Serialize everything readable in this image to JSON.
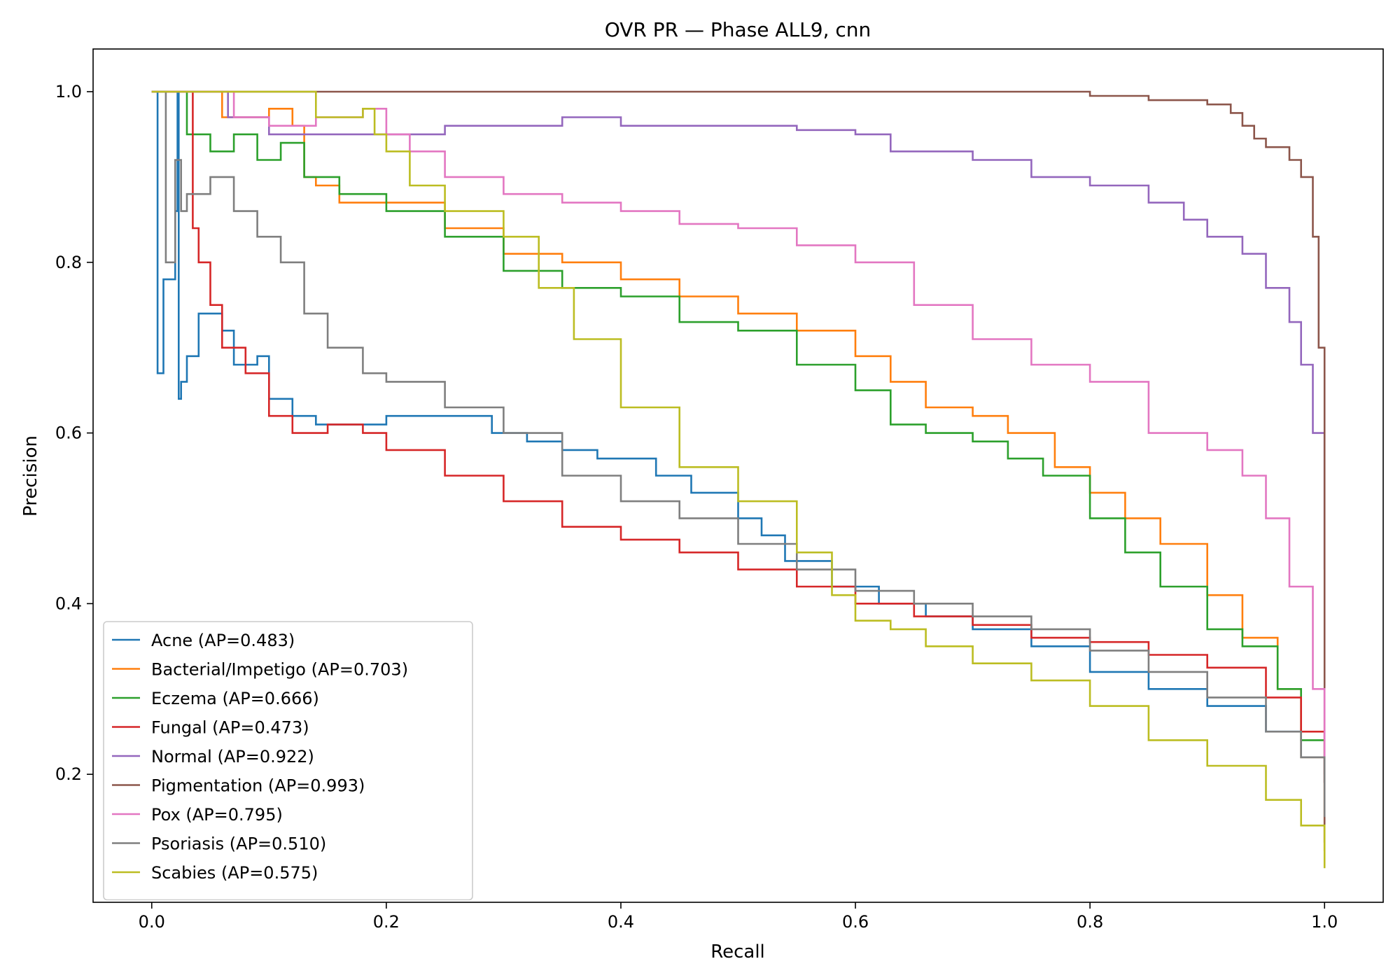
{
  "chart_data": {
    "type": "line",
    "title": "OVR PR — Phase ALL9, cnn",
    "xlabel": "Recall",
    "ylabel": "Precision",
    "xlim": [
      -0.05,
      1.05
    ],
    "ylim": [
      0.05,
      1.05
    ],
    "xticks": [
      0.0,
      0.2,
      0.4,
      0.6,
      0.8,
      1.0
    ],
    "xtick_labels": [
      "0.0",
      "0.2",
      "0.4",
      "0.6",
      "0.8",
      "1.0"
    ],
    "yticks": [
      0.2,
      0.4,
      0.6,
      0.8,
      1.0
    ],
    "ytick_labels": [
      "0.2",
      "0.4",
      "0.6",
      "0.8",
      "1.0"
    ],
    "grid": false,
    "legend_position": "lower-left",
    "series": [
      {
        "name": "Acne (AP=0.483)",
        "color": "#1f77b4",
        "x": [
          0.0,
          0.004,
          0.005,
          0.01,
          0.02,
          0.022,
          0.023,
          0.025,
          0.03,
          0.04,
          0.05,
          0.06,
          0.07,
          0.09,
          0.1,
          0.12,
          0.14,
          0.17,
          0.2,
          0.25,
          0.29,
          0.32,
          0.35,
          0.38,
          0.4,
          0.43,
          0.46,
          0.5,
          0.52,
          0.54,
          0.58,
          0.62,
          0.66,
          0.7,
          0.75,
          0.8,
          0.85,
          0.9,
          0.95,
          0.98,
          1.0
        ],
        "y": [
          1.0,
          1.0,
          0.67,
          0.78,
          0.86,
          1.0,
          0.64,
          0.66,
          0.69,
          0.74,
          0.74,
          0.72,
          0.68,
          0.69,
          0.64,
          0.62,
          0.61,
          0.61,
          0.62,
          0.62,
          0.6,
          0.59,
          0.58,
          0.57,
          0.57,
          0.55,
          0.53,
          0.5,
          0.48,
          0.45,
          0.42,
          0.4,
          0.385,
          0.37,
          0.35,
          0.32,
          0.3,
          0.28,
          0.25,
          0.22,
          0.2
        ]
      },
      {
        "name": "Bacterial/Impetigo (AP=0.703)",
        "color": "#ff7f0e",
        "x": [
          0.0,
          0.06,
          0.08,
          0.1,
          0.12,
          0.13,
          0.14,
          0.16,
          0.2,
          0.25,
          0.3,
          0.35,
          0.4,
          0.45,
          0.5,
          0.55,
          0.6,
          0.63,
          0.66,
          0.7,
          0.73,
          0.77,
          0.8,
          0.83,
          0.86,
          0.9,
          0.93,
          0.96,
          0.98,
          1.0
        ],
        "y": [
          1.0,
          0.97,
          0.97,
          0.98,
          0.96,
          0.9,
          0.89,
          0.87,
          0.87,
          0.84,
          0.81,
          0.8,
          0.78,
          0.76,
          0.74,
          0.72,
          0.69,
          0.66,
          0.63,
          0.62,
          0.6,
          0.56,
          0.53,
          0.5,
          0.47,
          0.41,
          0.36,
          0.3,
          0.22,
          0.11
        ]
      },
      {
        "name": "Eczema (AP=0.666)",
        "color": "#2ca02c",
        "x": [
          0.0,
          0.025,
          0.03,
          0.05,
          0.07,
          0.09,
          0.11,
          0.13,
          0.16,
          0.2,
          0.25,
          0.3,
          0.35,
          0.4,
          0.45,
          0.5,
          0.55,
          0.6,
          0.63,
          0.66,
          0.7,
          0.73,
          0.76,
          0.8,
          0.83,
          0.86,
          0.9,
          0.93,
          0.96,
          0.98,
          1.0
        ],
        "y": [
          1.0,
          1.0,
          0.95,
          0.93,
          0.95,
          0.92,
          0.94,
          0.9,
          0.88,
          0.86,
          0.83,
          0.79,
          0.77,
          0.76,
          0.73,
          0.72,
          0.68,
          0.65,
          0.61,
          0.6,
          0.59,
          0.57,
          0.55,
          0.5,
          0.46,
          0.42,
          0.37,
          0.35,
          0.3,
          0.24,
          0.19
        ]
      },
      {
        "name": "Fungal (AP=0.473)",
        "color": "#d62728",
        "x": [
          0.0,
          0.03,
          0.035,
          0.04,
          0.05,
          0.06,
          0.08,
          0.1,
          0.12,
          0.15,
          0.18,
          0.2,
          0.25,
          0.3,
          0.35,
          0.4,
          0.45,
          0.5,
          0.55,
          0.6,
          0.65,
          0.7,
          0.75,
          0.8,
          0.85,
          0.9,
          0.95,
          0.98,
          1.0
        ],
        "y": [
          1.0,
          1.0,
          0.84,
          0.8,
          0.75,
          0.7,
          0.67,
          0.62,
          0.6,
          0.61,
          0.6,
          0.58,
          0.55,
          0.52,
          0.49,
          0.475,
          0.46,
          0.44,
          0.42,
          0.4,
          0.385,
          0.375,
          0.36,
          0.355,
          0.34,
          0.325,
          0.29,
          0.25,
          0.19
        ]
      },
      {
        "name": "Normal (AP=0.922)",
        "color": "#9467bd",
        "x": [
          0.0,
          0.06,
          0.065,
          0.1,
          0.15,
          0.2,
          0.25,
          0.3,
          0.35,
          0.4,
          0.45,
          0.5,
          0.55,
          0.6,
          0.63,
          0.66,
          0.7,
          0.75,
          0.8,
          0.85,
          0.88,
          0.9,
          0.93,
          0.95,
          0.97,
          0.98,
          0.99,
          1.0
        ],
        "y": [
          1.0,
          1.0,
          0.97,
          0.95,
          0.95,
          0.95,
          0.96,
          0.96,
          0.97,
          0.96,
          0.96,
          0.96,
          0.955,
          0.95,
          0.93,
          0.93,
          0.92,
          0.9,
          0.89,
          0.87,
          0.85,
          0.83,
          0.81,
          0.77,
          0.73,
          0.68,
          0.6,
          0.44
        ]
      },
      {
        "name": "Pigmentation (AP=0.993)",
        "color": "#8c564b",
        "x": [
          0.0,
          0.7,
          0.74,
          0.8,
          0.85,
          0.9,
          0.92,
          0.93,
          0.94,
          0.95,
          0.97,
          0.98,
          0.99,
          0.995,
          1.0,
          1.0
        ],
        "y": [
          1.0,
          1.0,
          1.0,
          0.995,
          0.99,
          0.985,
          0.975,
          0.96,
          0.945,
          0.935,
          0.92,
          0.9,
          0.83,
          0.7,
          0.44,
          0.12
        ]
      },
      {
        "name": "Pox (AP=0.795)",
        "color": "#e377c2",
        "x": [
          0.0,
          0.06,
          0.07,
          0.1,
          0.14,
          0.18,
          0.2,
          0.22,
          0.25,
          0.3,
          0.35,
          0.4,
          0.45,
          0.5,
          0.55,
          0.6,
          0.65,
          0.7,
          0.75,
          0.8,
          0.85,
          0.9,
          0.93,
          0.95,
          0.97,
          0.99,
          1.0
        ],
        "y": [
          1.0,
          1.0,
          0.97,
          0.96,
          0.97,
          0.98,
          0.95,
          0.93,
          0.9,
          0.88,
          0.87,
          0.86,
          0.845,
          0.84,
          0.82,
          0.8,
          0.75,
          0.71,
          0.68,
          0.66,
          0.6,
          0.58,
          0.55,
          0.5,
          0.42,
          0.3,
          0.19
        ]
      },
      {
        "name": "Psoriasis (AP=0.510)",
        "color": "#7f7f7f",
        "x": [
          0.0,
          0.01,
          0.012,
          0.02,
          0.025,
          0.03,
          0.05,
          0.07,
          0.09,
          0.11,
          0.13,
          0.15,
          0.18,
          0.2,
          0.25,
          0.3,
          0.35,
          0.4,
          0.45,
          0.5,
          0.55,
          0.6,
          0.65,
          0.7,
          0.75,
          0.8,
          0.85,
          0.9,
          0.95,
          0.98,
          1.0
        ],
        "y": [
          1.0,
          1.0,
          0.8,
          0.92,
          0.86,
          0.88,
          0.9,
          0.86,
          0.83,
          0.8,
          0.74,
          0.7,
          0.67,
          0.66,
          0.63,
          0.6,
          0.55,
          0.52,
          0.5,
          0.47,
          0.44,
          0.415,
          0.4,
          0.385,
          0.37,
          0.345,
          0.32,
          0.29,
          0.25,
          0.22,
          0.15
        ]
      },
      {
        "name": "Scabies (AP=0.575)",
        "color": "#bcbd22",
        "x": [
          0.0,
          0.135,
          0.14,
          0.18,
          0.19,
          0.2,
          0.22,
          0.25,
          0.3,
          0.33,
          0.36,
          0.4,
          0.45,
          0.5,
          0.55,
          0.58,
          0.6,
          0.63,
          0.66,
          0.7,
          0.75,
          0.8,
          0.85,
          0.9,
          0.95,
          0.98,
          1.0
        ],
        "y": [
          1.0,
          1.0,
          0.97,
          0.98,
          0.95,
          0.93,
          0.89,
          0.86,
          0.83,
          0.77,
          0.71,
          0.63,
          0.56,
          0.52,
          0.46,
          0.41,
          0.38,
          0.37,
          0.35,
          0.33,
          0.31,
          0.28,
          0.24,
          0.21,
          0.17,
          0.14,
          0.09
        ]
      }
    ]
  }
}
